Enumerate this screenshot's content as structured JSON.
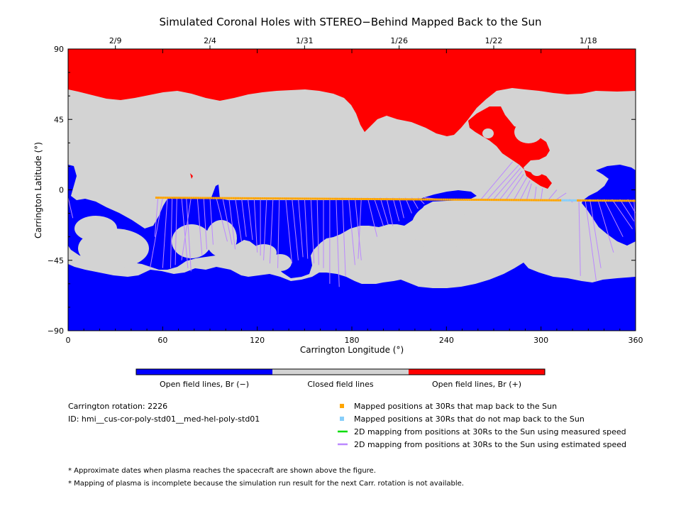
{
  "chart_data": {
    "type": "heatmap",
    "title": "Simulated Coronal Holes with STEREO−Behind Mapped Back to the Sun",
    "xlabel": "Carrington Longitude (°)",
    "ylabel": "Carrington Latitude (°)",
    "xlim": [
      0,
      360
    ],
    "ylim": [
      -90,
      90
    ],
    "x_ticks": [
      0,
      60,
      120,
      180,
      240,
      300,
      360
    ],
    "y_ticks": [
      -90,
      -45,
      0,
      45,
      90
    ],
    "x_tick_labels": [
      "0",
      "60",
      "120",
      "180",
      "240",
      "300",
      "360"
    ],
    "y_tick_labels": [
      "−90",
      "−45",
      "0",
      "45",
      "90"
    ],
    "top_ticks": [
      {
        "label": "2/9",
        "lon": 30
      },
      {
        "label": "2/4",
        "lon": 90
      },
      {
        "label": "1/31",
        "lon": 150
      },
      {
        "label": "1/26",
        "lon": 210
      },
      {
        "label": "1/22",
        "lon": 270
      },
      {
        "label": "1/18",
        "lon": 330
      }
    ],
    "colorbar": [
      {
        "label": "Open field lines, Br (−)",
        "color": "#0000ff"
      },
      {
        "label": "Closed field lines",
        "color": "#d3d3d3"
      },
      {
        "label": "Open field lines, Br (+)",
        "color": "#ff0000"
      }
    ],
    "colors": {
      "open_negative": "#0000ff",
      "closed": "#d3d3d3",
      "open_positive": "#ff0000",
      "mapped_back": "#ffa500",
      "not_mapped": "#87cefa",
      "measured_speed": "#00dd00",
      "estimated_speed": "#bb88ff"
    },
    "mapped_points": {
      "lon_range": [
        56,
        360
      ],
      "lat_start": -5,
      "lat_end": -7,
      "not_mapped_lon_range": [
        313,
        323
      ]
    },
    "estimated_speed_lines": [
      [
        57,
        -5,
        55,
        -30
      ],
      [
        60,
        -5,
        52,
        -50
      ],
      [
        63,
        -5,
        60,
        -50
      ],
      [
        66,
        -5,
        65,
        -50
      ],
      [
        69,
        -5,
        68,
        -48
      ],
      [
        72,
        -5,
        76,
        -50
      ],
      [
        75,
        -5,
        78,
        -52
      ],
      [
        78,
        -5,
        72,
        -45
      ],
      [
        82,
        -5,
        85,
        -42
      ],
      [
        86,
        -5,
        88,
        -38
      ],
      [
        90,
        -5,
        92,
        -35
      ],
      [
        94,
        -5,
        101,
        -33
      ],
      [
        98,
        -5,
        104,
        -35
      ],
      [
        102,
        -5,
        106,
        -38
      ],
      [
        106,
        -5,
        110,
        -33
      ],
      [
        110,
        -5,
        113,
        -30
      ],
      [
        114,
        -5,
        117,
        -32
      ],
      [
        118,
        -5,
        120,
        -40
      ],
      [
        122,
        -5,
        122,
        -42
      ],
      [
        126,
        -5,
        124,
        -45
      ],
      [
        130,
        -5,
        128,
        -47
      ],
      [
        134,
        -5,
        133,
        -50
      ],
      [
        138,
        -5,
        142,
        -47
      ],
      [
        142,
        -5,
        146,
        -45
      ],
      [
        146,
        -5,
        149,
        -43
      ],
      [
        150,
        -5,
        152,
        -44
      ],
      [
        154,
        -5,
        156,
        -47
      ],
      [
        158,
        -5,
        159,
        -48
      ],
      [
        162,
        -5,
        162,
        -50
      ],
      [
        166,
        -5,
        166,
        -60
      ],
      [
        170,
        -5,
        172,
        -62
      ],
      [
        174,
        -5,
        176,
        -55
      ],
      [
        178,
        -5,
        182,
        -48
      ],
      [
        182,
        -5,
        186,
        -45
      ],
      [
        186,
        -5,
        184,
        -44
      ],
      [
        190,
        -5,
        196,
        -30
      ],
      [
        194,
        -5,
        200,
        -23
      ],
      [
        198,
        -5,
        203,
        -22
      ],
      [
        202,
        -5,
        206,
        -23
      ],
      [
        206,
        -5,
        210,
        -20
      ],
      [
        210,
        -5,
        213,
        -18
      ],
      [
        214,
        -5,
        218,
        -15
      ],
      [
        218,
        -5,
        222,
        -12
      ],
      [
        222,
        -5,
        226,
        -9
      ],
      [
        226,
        -5,
        236,
        -6
      ],
      [
        262,
        -6,
        282,
        18
      ],
      [
        266,
        -6,
        286,
        16
      ],
      [
        270,
        -6,
        287,
        14
      ],
      [
        274,
        -6,
        288,
        12
      ],
      [
        278,
        -6,
        289,
        10
      ],
      [
        283,
        -6,
        291,
        8
      ],
      [
        287,
        -6,
        293,
        6
      ],
      [
        291,
        -6,
        294,
        4
      ],
      [
        296,
        -6,
        297,
        2
      ],
      [
        300,
        -6,
        301,
        1
      ],
      [
        305,
        -6,
        310,
        0
      ],
      [
        310,
        -6,
        316,
        -2
      ],
      [
        318,
        -6,
        320,
        -8
      ],
      [
        324,
        -6,
        325,
        -55
      ],
      [
        328,
        -6,
        335,
        -58
      ],
      [
        331,
        -6,
        338,
        -50
      ],
      [
        336,
        -6,
        346,
        -40
      ],
      [
        340,
        -6,
        352,
        -30
      ],
      [
        345,
        -6,
        358,
        -25
      ],
      [
        350,
        -6,
        359,
        -20
      ],
      [
        355,
        -6,
        360,
        -15
      ],
      [
        359,
        -6,
        360,
        -28
      ],
      [
        0,
        -5,
        3,
        -18
      ]
    ]
  },
  "info": {
    "rotation_label": "Carrington rotation:",
    "rotation_value": "2226",
    "id_label": "ID:",
    "id_value": "hmi__cus-cor-poly-std01__med-hel-poly-std01"
  },
  "legend": [
    {
      "label": "Mapped positions at 30Rs that map back to the Sun",
      "marker": "square",
      "color": "#ffa500"
    },
    {
      "label": "Mapped positions at 30Rs that do not map back to the Sun",
      "marker": "square",
      "color": "#87cefa"
    },
    {
      "label": "2D mapping from positions at 30Rs to the Sun using measured speed",
      "marker": "line",
      "color": "#00dd00"
    },
    {
      "label": "2D mapping from positions at 30Rs to the Sun using estimated speed",
      "marker": "line",
      "color": "#bb88ff"
    }
  ],
  "notes": [
    "* Approximate dates when plasma reaches the spacecraft are shown above the figure.",
    "* Mapping of plasma is incomplete because the simulation run result for the next Carr. rotation is not available."
  ]
}
